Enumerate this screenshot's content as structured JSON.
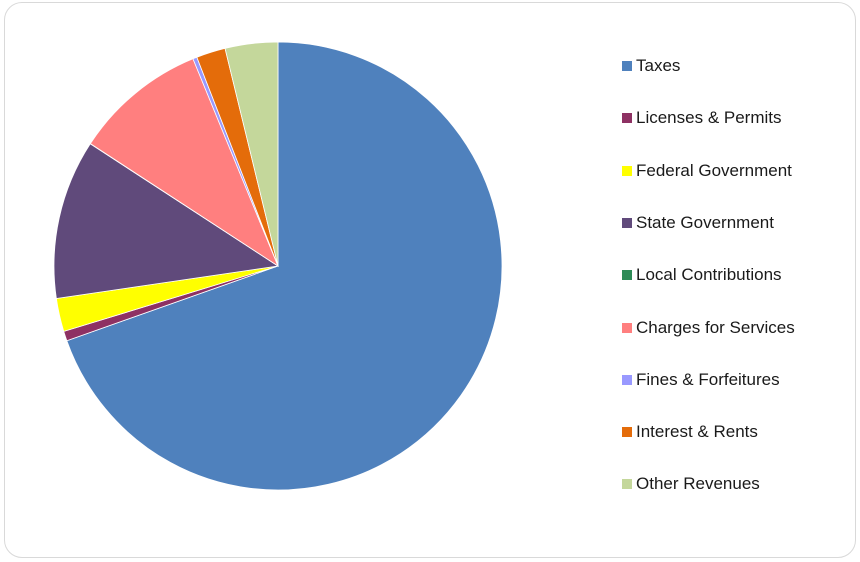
{
  "chart_data": {
    "type": "pie",
    "title": "",
    "legend_position": "right",
    "start_angle_deg": 0,
    "direction": "clockwise",
    "series": [
      {
        "categories": [
          "Taxes",
          "Licenses & Permits",
          "Federal Government",
          "State Government",
          "Local Contributions",
          "Charges for Services",
          "Fines & Forfeitures",
          "Interest & Rents",
          "Other Revenues"
        ],
        "values": [
          69.6,
          0.7,
          2.4,
          11.5,
          0.02,
          9.6,
          0.3,
          2.1,
          3.8
        ],
        "colors": [
          "#4F81BD",
          "#8E3163",
          "#FFFF00",
          "#604A7B",
          "#2E8B57",
          "#FF7F7F",
          "#9999FF",
          "#E46C0A",
          "#C4D79B"
        ]
      }
    ]
  }
}
